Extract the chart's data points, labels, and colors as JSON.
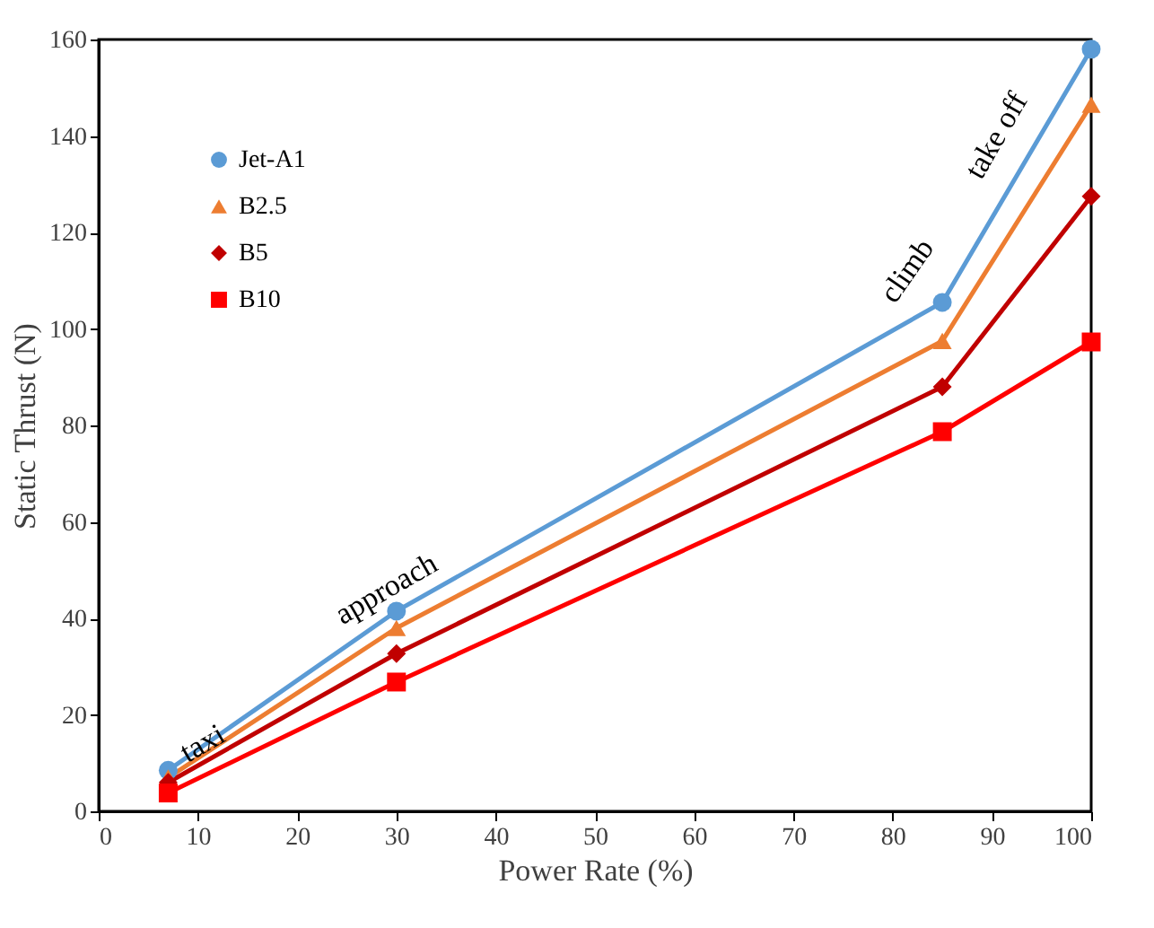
{
  "chart_data": {
    "type": "line",
    "xlabel": "Power Rate (%)",
    "ylabel": "Static Thrust (N)",
    "x": [
      7,
      30,
      85,
      100
    ],
    "series": [
      {
        "name": "Jet-A1",
        "color": "#5b9bd5",
        "marker": "circle",
        "values": [
          8.5,
          41.5,
          105.5,
          158
        ]
      },
      {
        "name": "B2.5",
        "color": "#ed7d31",
        "marker": "triangle",
        "values": [
          7,
          38,
          97.5,
          146.5
        ]
      },
      {
        "name": "B5",
        "color": "#c00000",
        "marker": "diamond",
        "values": [
          6,
          32.7,
          88,
          127.5
        ]
      },
      {
        "name": "B10",
        "color": "#ff0000",
        "marker": "square",
        "values": [
          3.8,
          26.8,
          78.7,
          97.3
        ]
      }
    ],
    "xlim": [
      0,
      100
    ],
    "xticks": [
      0,
      10,
      20,
      30,
      40,
      50,
      60,
      70,
      80,
      90,
      100
    ],
    "ylim": [
      0,
      160
    ],
    "yticks": [
      0,
      20,
      40,
      60,
      80,
      100,
      120,
      140,
      160
    ],
    "annotations": [
      "taxi",
      "approach",
      "climb",
      "take off"
    ],
    "grid": false,
    "legend": "top left"
  }
}
